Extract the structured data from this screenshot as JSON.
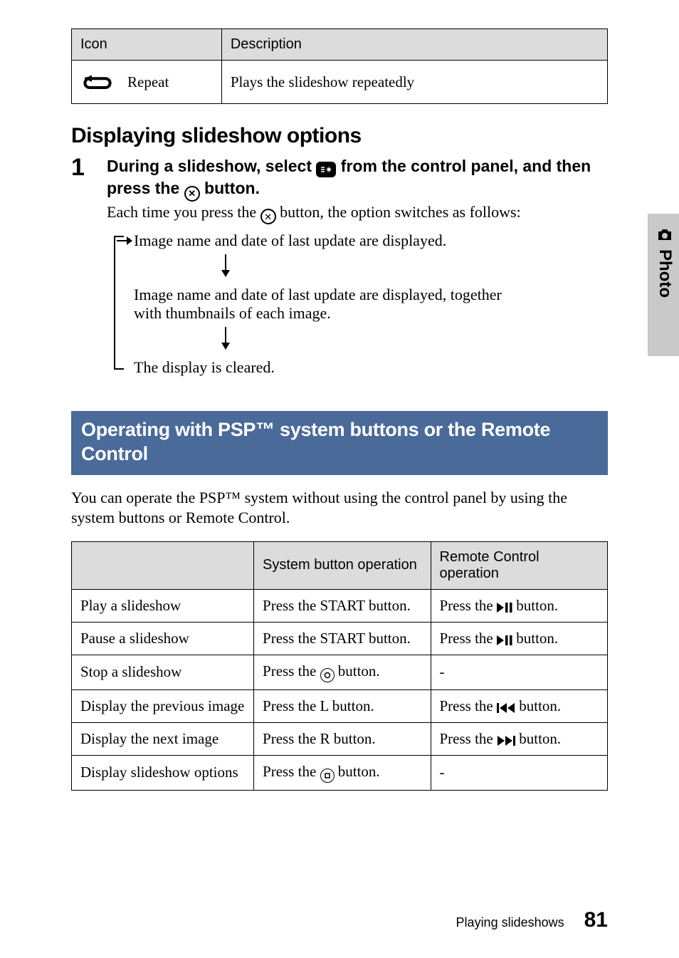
{
  "table1": {
    "headers": [
      "Icon",
      "Description"
    ],
    "row": {
      "label": "Repeat",
      "desc": "Plays the slideshow repeatedly"
    }
  },
  "section_heading": "Displaying slideshow options",
  "step": {
    "num": "1",
    "title_a": "During a slideshow, select ",
    "title_b": " from the control panel, and then press the ",
    "title_c": " button.",
    "desc_a": "Each time you press the ",
    "desc_b": " button, the option switches as follows:"
  },
  "flow": {
    "l1": "Image name and date of last update are displayed.",
    "l2": "Image name and date of last update are displayed, together with thumbnails of each image.",
    "l3": "The display is cleared."
  },
  "blue_heading": "Operating with PSP™ system buttons or the Remote Control",
  "paragraph": "You can operate the PSP™ system without using the control panel by using the system buttons or Remote Control.",
  "table2": {
    "headers": [
      "",
      "System button operation",
      "Remote Control operation"
    ],
    "rows": [
      {
        "c1": "Play a slideshow",
        "c2": "Press the START button.",
        "c3_pre": "Press the ",
        "c3_icon": "play-pause",
        "c3_post": " button."
      },
      {
        "c1": "Pause a slideshow",
        "c2": "Press the START button.",
        "c3_pre": "Press the ",
        "c3_icon": "play-pause",
        "c3_post": " button."
      },
      {
        "c1": "Stop a slideshow",
        "c2_pre": "Press the ",
        "c2_icon": "circle-o",
        "c2_post": " button.",
        "c3": "-"
      },
      {
        "c1": "Display the previous image",
        "c2": "Press the L button.",
        "c3_pre": "Press the ",
        "c3_icon": "prev",
        "c3_post": " button."
      },
      {
        "c1": "Display the next image",
        "c2": "Press the R button.",
        "c3_pre": "Press the ",
        "c3_icon": "next",
        "c3_post": " button."
      },
      {
        "c1": "Display slideshow options",
        "c2_pre": "Press the ",
        "c2_icon": "circle-sq",
        "c2_post": " button.",
        "c3": "-"
      }
    ]
  },
  "side_label": "Photo",
  "footer": {
    "text": "Playing slideshows",
    "page": "81"
  },
  "colors": {
    "header_bg": "#dcdcdc",
    "blue_band": "#4a6a99",
    "side_tab": "#c9c9c9",
    "text": "#000000",
    "bg": "#ffffff"
  }
}
